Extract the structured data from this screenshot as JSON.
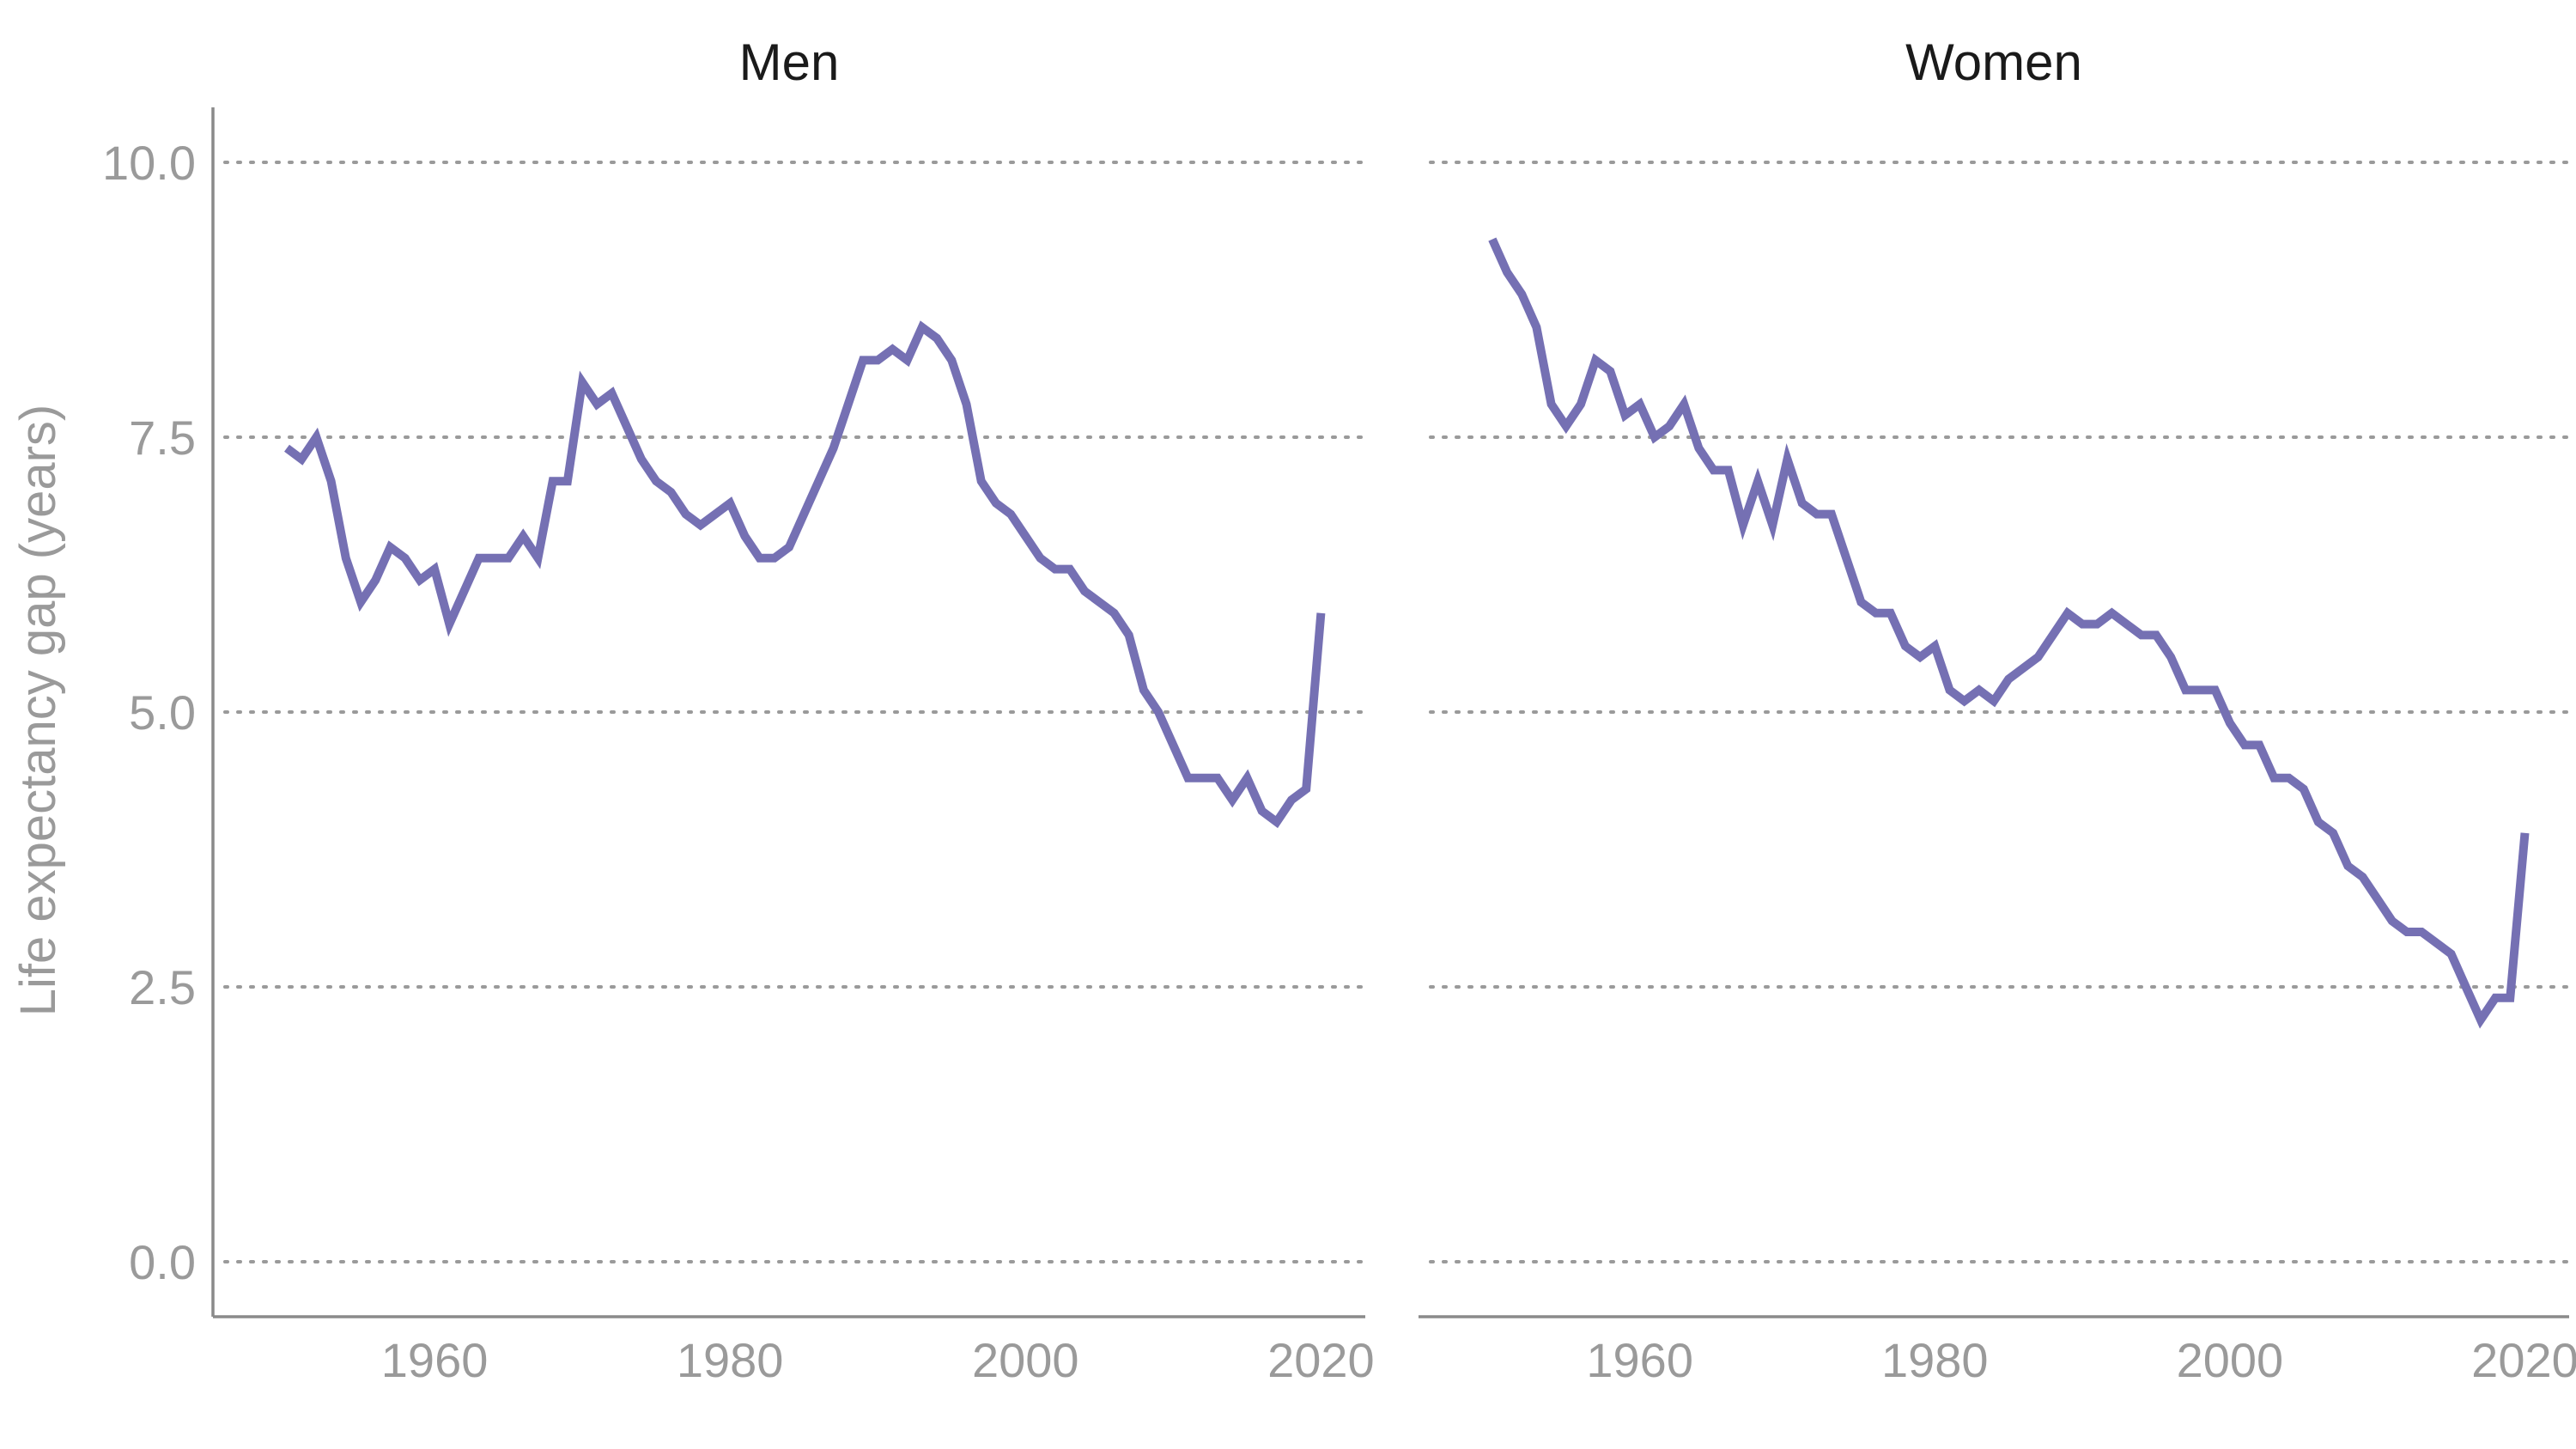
{
  "chart_data": {
    "type": "line",
    "ylabel": "Life expectancy gap (years)",
    "ylim": [
      -0.5,
      10.5
    ],
    "xlim": [
      1945,
      2023
    ],
    "y_ticks": [
      "0.0",
      "2.5",
      "5.0",
      "7.5",
      "10.0"
    ],
    "x_ticks": [
      "1960",
      "1980",
      "2000",
      "2020"
    ],
    "grid": "horizontal dotted",
    "line_color": "#7570b3",
    "panels": [
      {
        "title": "Men",
        "series": [
          {
            "x": [
              1950,
              1951,
              1952,
              1953,
              1954,
              1955,
              1956,
              1957,
              1958,
              1959,
              1960,
              1961,
              1962,
              1963,
              1964,
              1965,
              1966,
              1967,
              1968,
              1969,
              1970,
              1971,
              1972,
              1973,
              1974,
              1975,
              1976,
              1977,
              1978,
              1979,
              1980,
              1981,
              1982,
              1983,
              1984,
              1985,
              1986,
              1987,
              1988,
              1989,
              1990,
              1991,
              1992,
              1993,
              1994,
              1995,
              1996,
              1997,
              1998,
              1999,
              2000,
              2001,
              2002,
              2003,
              2004,
              2005,
              2006,
              2007,
              2008,
              2009,
              2010,
              2011,
              2012,
              2013,
              2014,
              2015,
              2016,
              2017,
              2018,
              2019,
              2020
            ],
            "y": [
              7.4,
              7.3,
              7.5,
              7.1,
              6.4,
              6.0,
              6.2,
              6.5,
              6.4,
              6.2,
              6.3,
              5.8,
              6.1,
              6.4,
              6.4,
              6.4,
              6.6,
              6.4,
              7.1,
              7.1,
              8.0,
              7.8,
              7.9,
              7.6,
              7.3,
              7.1,
              7.0,
              6.8,
              6.7,
              6.8,
              6.9,
              6.6,
              6.4,
              6.4,
              6.5,
              6.8,
              7.1,
              7.4,
              7.8,
              8.2,
              8.2,
              8.3,
              8.2,
              8.5,
              8.4,
              8.2,
              7.8,
              7.1,
              6.9,
              6.8,
              6.6,
              6.4,
              6.3,
              6.3,
              6.1,
              6.0,
              5.9,
              5.7,
              5.2,
              5.0,
              4.7,
              4.4,
              4.4,
              4.4,
              4.2,
              4.4,
              4.1,
              4.0,
              4.2,
              4.3,
              5.9
            ]
          }
        ]
      },
      {
        "title": "Women",
        "series": [
          {
            "x": [
              1950,
              1951,
              1952,
              1953,
              1954,
              1955,
              1956,
              1957,
              1958,
              1959,
              1960,
              1961,
              1962,
              1963,
              1964,
              1965,
              1966,
              1967,
              1968,
              1969,
              1970,
              1971,
              1972,
              1973,
              1974,
              1975,
              1976,
              1977,
              1978,
              1979,
              1980,
              1981,
              1982,
              1983,
              1984,
              1985,
              1986,
              1987,
              1988,
              1989,
              1990,
              1991,
              1992,
              1993,
              1994,
              1995,
              1996,
              1997,
              1998,
              1999,
              2000,
              2001,
              2002,
              2003,
              2004,
              2005,
              2006,
              2007,
              2008,
              2009,
              2010,
              2011,
              2012,
              2013,
              2014,
              2015,
              2016,
              2017,
              2018,
              2019,
              2020
            ],
            "y": [
              9.3,
              9.0,
              8.8,
              8.5,
              7.8,
              7.6,
              7.8,
              8.2,
              8.1,
              7.7,
              7.8,
              7.5,
              7.6,
              7.8,
              7.4,
              7.2,
              7.2,
              6.7,
              7.1,
              6.7,
              7.3,
              6.9,
              6.8,
              6.8,
              6.4,
              6.0,
              5.9,
              5.9,
              5.6,
              5.5,
              5.6,
              5.2,
              5.1,
              5.2,
              5.1,
              5.3,
              5.4,
              5.5,
              5.7,
              5.9,
              5.8,
              5.8,
              5.9,
              5.8,
              5.7,
              5.7,
              5.5,
              5.2,
              5.2,
              5.2,
              4.9,
              4.7,
              4.7,
              4.4,
              4.4,
              4.3,
              4.0,
              3.9,
              3.6,
              3.5,
              3.3,
              3.1,
              3.0,
              3.0,
              2.9,
              2.8,
              2.5,
              2.2,
              2.4,
              2.4,
              3.9
            ]
          }
        ]
      }
    ]
  }
}
